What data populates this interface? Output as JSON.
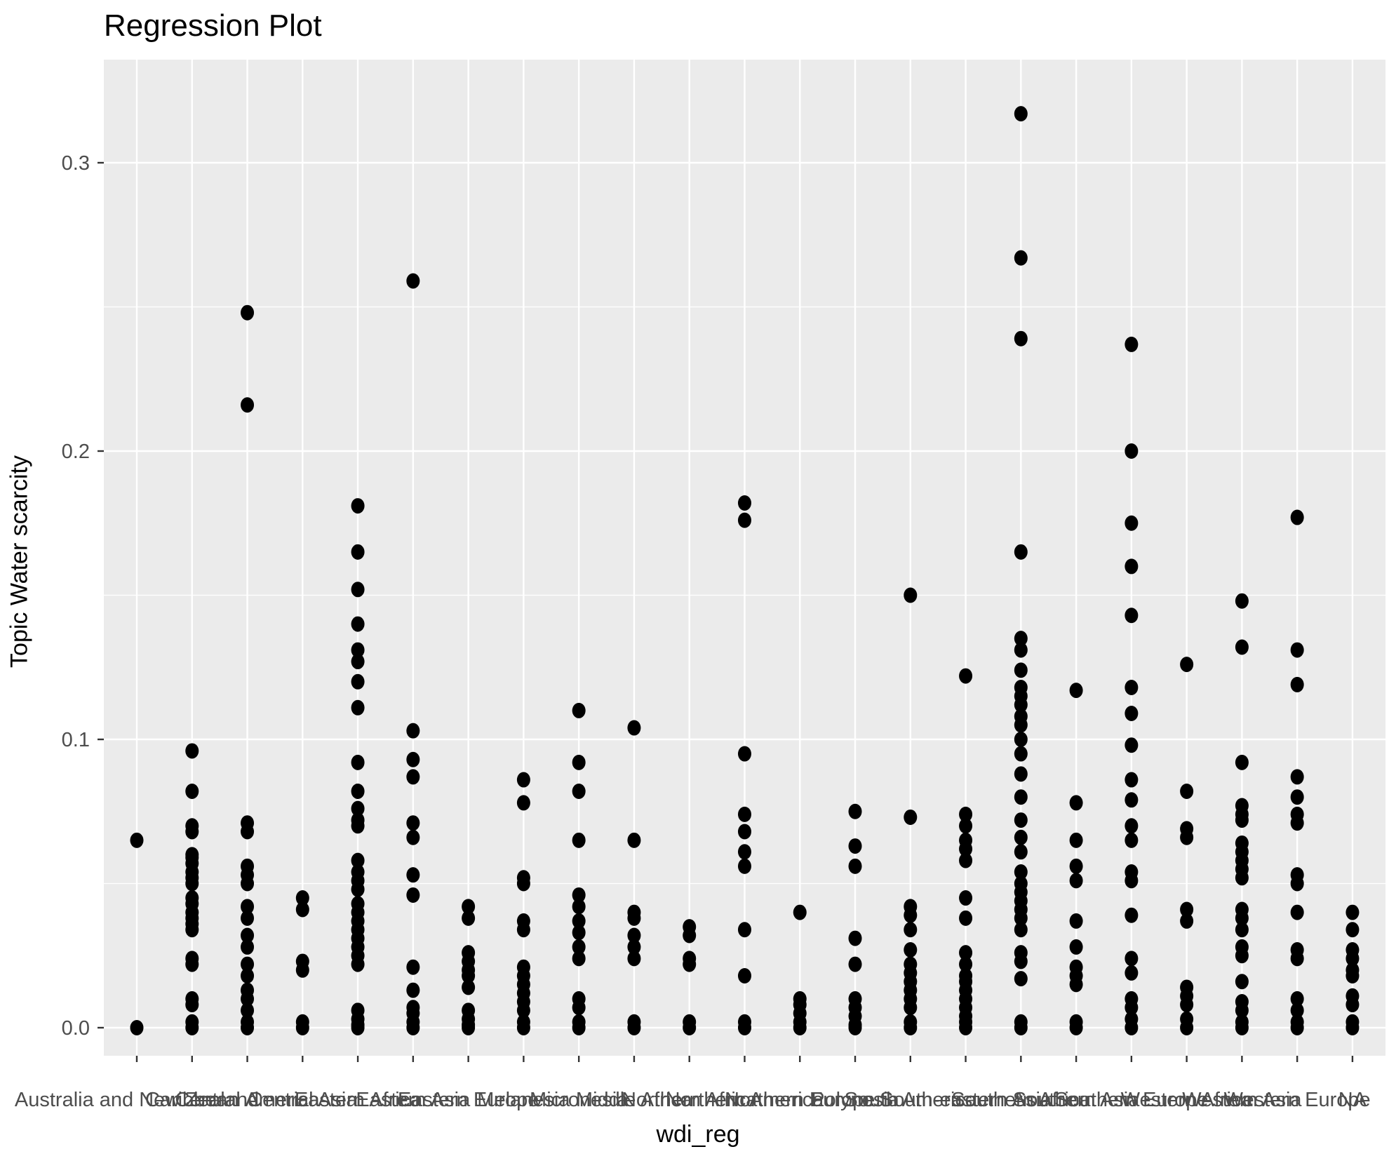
{
  "title": "Regression Plot",
  "x_axis_title": "wdi_reg",
  "y_axis_title": "Topic Water scarcity",
  "colors": {
    "panel_background": "#EBEBEB",
    "grid_major": "#FFFFFF",
    "grid_minor": "#FFFFFF",
    "point": "#000000",
    "tick_label": "#4D4D4D",
    "tick_mark": "#333333",
    "title_text": "#000000"
  },
  "chart_data": {
    "type": "scatter",
    "title": "Regression Plot",
    "xlabel": "wdi_reg",
    "ylabel": "Topic Water scarcity",
    "ylim": [
      -0.021,
      0.336
    ],
    "y_major_ticks": [
      0.0,
      0.1,
      0.2,
      0.3
    ],
    "y_tick_labels": [
      "0.0",
      "0.1",
      "0.2",
      "0.3"
    ],
    "y_minor_gridlines": [
      0.05,
      0.15,
      0.25
    ],
    "grid": "on",
    "legend_position": "none",
    "categories": [
      "Australia and New Zealand",
      "Caribbean",
      "Central America",
      "Central Asia",
      "Eastern Africa",
      "Eastern Asia",
      "Eastern Europe",
      "Melanesia",
      "Micronesia",
      "Middle Africa",
      "Northern Africa",
      "Northern America",
      "Northern Europe",
      "Polynesia",
      "South America",
      "South-eastern Asia",
      "Southern Africa",
      "Southern Asia",
      "Southern Europe",
      "Western Africa",
      "Western Asia",
      "Western Europe",
      "NA"
    ],
    "series": [
      {
        "name": "Australia and New Zealand",
        "values": [
          0.065,
          0.0
        ]
      },
      {
        "name": "Caribbean",
        "values": [
          0.096,
          0.082,
          0.07,
          0.068,
          0.06,
          0.059,
          0.057,
          0.054,
          0.052,
          0.05,
          0.045,
          0.043,
          0.04,
          0.038,
          0.036,
          0.034,
          0.024,
          0.022,
          0.01,
          0.008,
          0.002,
          0.0
        ]
      },
      {
        "name": "Central America",
        "values": [
          0.248,
          0.216,
          0.071,
          0.068,
          0.056,
          0.053,
          0.05,
          0.042,
          0.038,
          0.032,
          0.028,
          0.022,
          0.018,
          0.013,
          0.01,
          0.006,
          0.002,
          0.0
        ]
      },
      {
        "name": "Central Asia",
        "values": [
          0.045,
          0.041,
          0.023,
          0.02,
          0.002,
          0.0
        ]
      },
      {
        "name": "Eastern Africa",
        "values": [
          0.181,
          0.165,
          0.152,
          0.14,
          0.131,
          0.127,
          0.12,
          0.111,
          0.092,
          0.082,
          0.076,
          0.072,
          0.07,
          0.058,
          0.054,
          0.051,
          0.048,
          0.043,
          0.04,
          0.037,
          0.034,
          0.031,
          0.028,
          0.025,
          0.022,
          0.006,
          0.003,
          0.001,
          0.0
        ]
      },
      {
        "name": "Eastern Asia",
        "values": [
          0.259,
          0.103,
          0.093,
          0.087,
          0.071,
          0.066,
          0.053,
          0.046,
          0.021,
          0.013,
          0.007,
          0.005,
          0.002,
          0.0
        ]
      },
      {
        "name": "Eastern Europe",
        "values": [
          0.042,
          0.038,
          0.026,
          0.023,
          0.02,
          0.018,
          0.014,
          0.006,
          0.003,
          0.001,
          0.0
        ]
      },
      {
        "name": "Melanesia",
        "values": [
          0.086,
          0.078,
          0.052,
          0.05,
          0.037,
          0.034,
          0.021,
          0.018,
          0.015,
          0.012,
          0.009,
          0.006,
          0.002,
          0.0
        ]
      },
      {
        "name": "Micronesia",
        "values": [
          0.11,
          0.092,
          0.082,
          0.065,
          0.046,
          0.042,
          0.037,
          0.033,
          0.028,
          0.024,
          0.01,
          0.007,
          0.002,
          0.0
        ]
      },
      {
        "name": "Middle Africa",
        "values": [
          0.104,
          0.065,
          0.04,
          0.038,
          0.032,
          0.028,
          0.024,
          0.002,
          0.0
        ]
      },
      {
        "name": "Northern Africa",
        "values": [
          0.035,
          0.032,
          0.024,
          0.022,
          0.002,
          0.0
        ]
      },
      {
        "name": "Northern America",
        "values": [
          0.182,
          0.176,
          0.095,
          0.074,
          0.068,
          0.061,
          0.056,
          0.034,
          0.018,
          0.002,
          0.0
        ]
      },
      {
        "name": "Northern Europe",
        "values": [
          0.04,
          0.01,
          0.008,
          0.005,
          0.002,
          0.0
        ]
      },
      {
        "name": "Polynesia",
        "values": [
          0.075,
          0.063,
          0.056,
          0.031,
          0.022,
          0.01,
          0.007,
          0.004,
          0.001,
          0.0
        ]
      },
      {
        "name": "South America",
        "values": [
          0.15,
          0.073,
          0.042,
          0.039,
          0.034,
          0.027,
          0.022,
          0.019,
          0.016,
          0.013,
          0.01,
          0.007,
          0.002,
          0.0
        ]
      },
      {
        "name": "South-eastern Asia",
        "values": [
          0.122,
          0.074,
          0.07,
          0.065,
          0.062,
          0.058,
          0.045,
          0.038,
          0.026,
          0.022,
          0.018,
          0.016,
          0.013,
          0.01,
          0.007,
          0.004,
          0.002,
          0.0
        ]
      },
      {
        "name": "Southern Africa",
        "values": [
          0.317,
          0.267,
          0.239,
          0.165,
          0.135,
          0.131,
          0.124,
          0.118,
          0.115,
          0.112,
          0.108,
          0.105,
          0.1,
          0.095,
          0.088,
          0.08,
          0.072,
          0.066,
          0.061,
          0.054,
          0.05,
          0.047,
          0.044,
          0.041,
          0.038,
          0.034,
          0.026,
          0.023,
          0.017,
          0.002,
          0.0
        ]
      },
      {
        "name": "Southern Asia",
        "values": [
          0.117,
          0.078,
          0.065,
          0.056,
          0.051,
          0.037,
          0.028,
          0.021,
          0.018,
          0.015,
          0.002,
          0.0
        ]
      },
      {
        "name": "Southern Europe",
        "values": [
          0.237,
          0.2,
          0.175,
          0.16,
          0.143,
          0.118,
          0.109,
          0.098,
          0.086,
          0.079,
          0.07,
          0.065,
          0.054,
          0.051,
          0.039,
          0.024,
          0.019,
          0.01,
          0.007,
          0.003,
          0.0
        ]
      },
      {
        "name": "Western Africa",
        "values": [
          0.126,
          0.082,
          0.069,
          0.066,
          0.041,
          0.037,
          0.014,
          0.011,
          0.008,
          0.003,
          0.0
        ]
      },
      {
        "name": "Western Asia",
        "values": [
          0.148,
          0.132,
          0.092,
          0.077,
          0.074,
          0.072,
          0.064,
          0.061,
          0.058,
          0.055,
          0.052,
          0.041,
          0.038,
          0.034,
          0.028,
          0.025,
          0.016,
          0.009,
          0.006,
          0.002,
          0.0
        ]
      },
      {
        "name": "Western Europe",
        "values": [
          0.177,
          0.131,
          0.119,
          0.087,
          0.08,
          0.074,
          0.071,
          0.053,
          0.05,
          0.04,
          0.027,
          0.024,
          0.01,
          0.006,
          0.002,
          0.0
        ]
      },
      {
        "name": "NA",
        "values": [
          0.04,
          0.034,
          0.027,
          0.024,
          0.02,
          0.018,
          0.011,
          0.008,
          0.002,
          0.0
        ]
      }
    ]
  }
}
